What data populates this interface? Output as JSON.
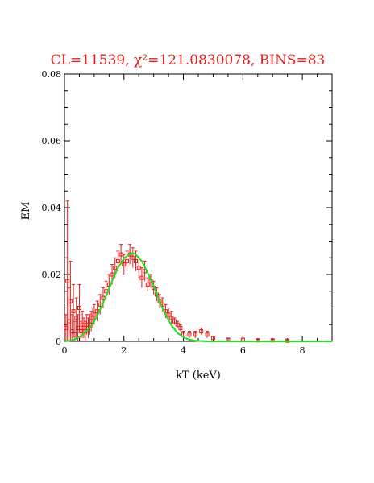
{
  "chart_data": {
    "type": "scatter",
    "title": "CL=11539, χ²=121.0830078, BINS=83",
    "xlabel": "kT (keV)",
    "ylabel": "EM",
    "xlim": [
      0,
      9
    ],
    "ylim": [
      0,
      0.08
    ],
    "x_ticks": [
      0,
      2,
      4,
      6,
      8
    ],
    "x_tick_labels": [
      "0",
      "2",
      "4",
      "6",
      "8"
    ],
    "y_ticks": [
      0,
      0.02,
      0.04,
      0.06,
      0.08
    ],
    "y_tick_labels": [
      "0",
      "0.02",
      "0.04",
      "0.06",
      "0.08"
    ],
    "grid": false,
    "colors": {
      "data": "#e0201c",
      "model": "#22dd22",
      "title": "#e0201c",
      "axis": "#000000"
    },
    "series": [
      {
        "kind": "points_with_error_bars",
        "x": [
          0.05,
          0.1,
          0.15,
          0.2,
          0.25,
          0.3,
          0.35,
          0.4,
          0.45,
          0.5,
          0.55,
          0.6,
          0.65,
          0.7,
          0.75,
          0.8,
          0.85,
          0.9,
          0.95,
          1.0,
          1.1,
          1.2,
          1.3,
          1.4,
          1.5,
          1.6,
          1.7,
          1.8,
          1.9,
          2.0,
          2.1,
          2.2,
          2.3,
          2.4,
          2.5,
          2.6,
          2.7,
          2.8,
          2.9,
          3.0,
          3.1,
          3.2,
          3.3,
          3.4,
          3.5,
          3.6,
          3.7,
          3.8,
          3.9,
          4.0,
          4.2,
          4.4,
          4.6,
          4.8,
          5.0,
          5.5,
          6.0,
          6.5,
          7.0,
          7.5
        ],
        "y": [
          0.004,
          0.018,
          0.006,
          0.012,
          0.003,
          0.009,
          0.002,
          0.007,
          0.004,
          0.01,
          0.003,
          0.005,
          0.004,
          0.003,
          0.005,
          0.004,
          0.005,
          0.006,
          0.007,
          0.008,
          0.009,
          0.011,
          0.013,
          0.015,
          0.017,
          0.02,
          0.022,
          0.024,
          0.026,
          0.023,
          0.024,
          0.026,
          0.025,
          0.024,
          0.022,
          0.019,
          0.021,
          0.017,
          0.018,
          0.016,
          0.014,
          0.012,
          0.011,
          0.009,
          0.008,
          0.007,
          0.006,
          0.005,
          0.004,
          0.002,
          0.002,
          0.002,
          0.003,
          0.002,
          0.001,
          0.0005,
          0.0005,
          0.0003,
          0.0003,
          0.0002
        ],
        "yerr": [
          0.004,
          0.024,
          0.01,
          0.012,
          0.005,
          0.008,
          0.004,
          0.006,
          0.004,
          0.007,
          0.003,
          0.004,
          0.003,
          0.003,
          0.003,
          0.003,
          0.003,
          0.003,
          0.003,
          0.003,
          0.003,
          0.003,
          0.003,
          0.003,
          0.003,
          0.003,
          0.003,
          0.003,
          0.003,
          0.003,
          0.003,
          0.003,
          0.003,
          0.003,
          0.003,
          0.003,
          0.003,
          0.002,
          0.002,
          0.002,
          0.002,
          0.002,
          0.002,
          0.002,
          0.002,
          0.002,
          0.001,
          0.001,
          0.001,
          0.001,
          0.001,
          0.001,
          0.001,
          0.001,
          0.0005,
          0.0004,
          0.0004,
          0.0003,
          0.0003,
          0.0002
        ]
      },
      {
        "kind": "line",
        "x": [
          0.0,
          0.2,
          0.4,
          0.6,
          0.8,
          1.0,
          1.2,
          1.4,
          1.6,
          1.8,
          2.0,
          2.2,
          2.3,
          2.4,
          2.6,
          2.8,
          3.0,
          3.2,
          3.4,
          3.6,
          3.8,
          4.0,
          4.2,
          4.4,
          4.6,
          4.8,
          5.0,
          6.0,
          7.0,
          8.0,
          9.0
        ],
        "y": [
          0.0,
          0.0002,
          0.0008,
          0.0018,
          0.0035,
          0.006,
          0.0095,
          0.0135,
          0.018,
          0.022,
          0.0248,
          0.0262,
          0.0264,
          0.026,
          0.024,
          0.0205,
          0.0165,
          0.012,
          0.008,
          0.0048,
          0.0025,
          0.0012,
          0.0005,
          0.0002,
          0.0001,
          0.0,
          0.0,
          0.0,
          0.0,
          0.0,
          0.0
        ]
      }
    ]
  }
}
